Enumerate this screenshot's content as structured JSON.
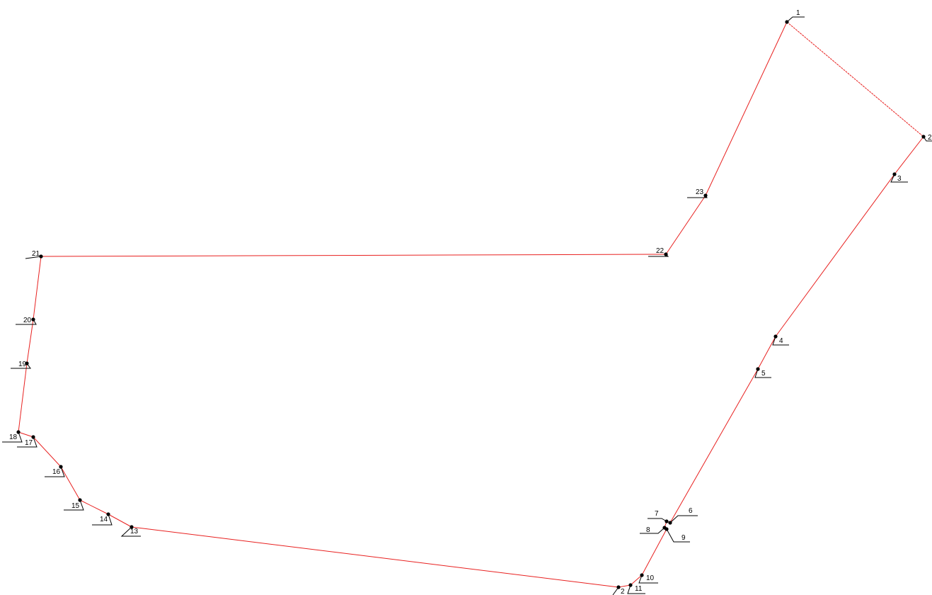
{
  "plot": {
    "points": [
      "1",
      "2",
      "3",
      "4",
      "5",
      "6",
      "7",
      "8",
      "9",
      "10",
      "11",
      "2",
      "13",
      "14",
      "15",
      "16",
      "17",
      "18",
      "19",
      "20",
      "21",
      "22",
      "23"
    ]
  }
}
